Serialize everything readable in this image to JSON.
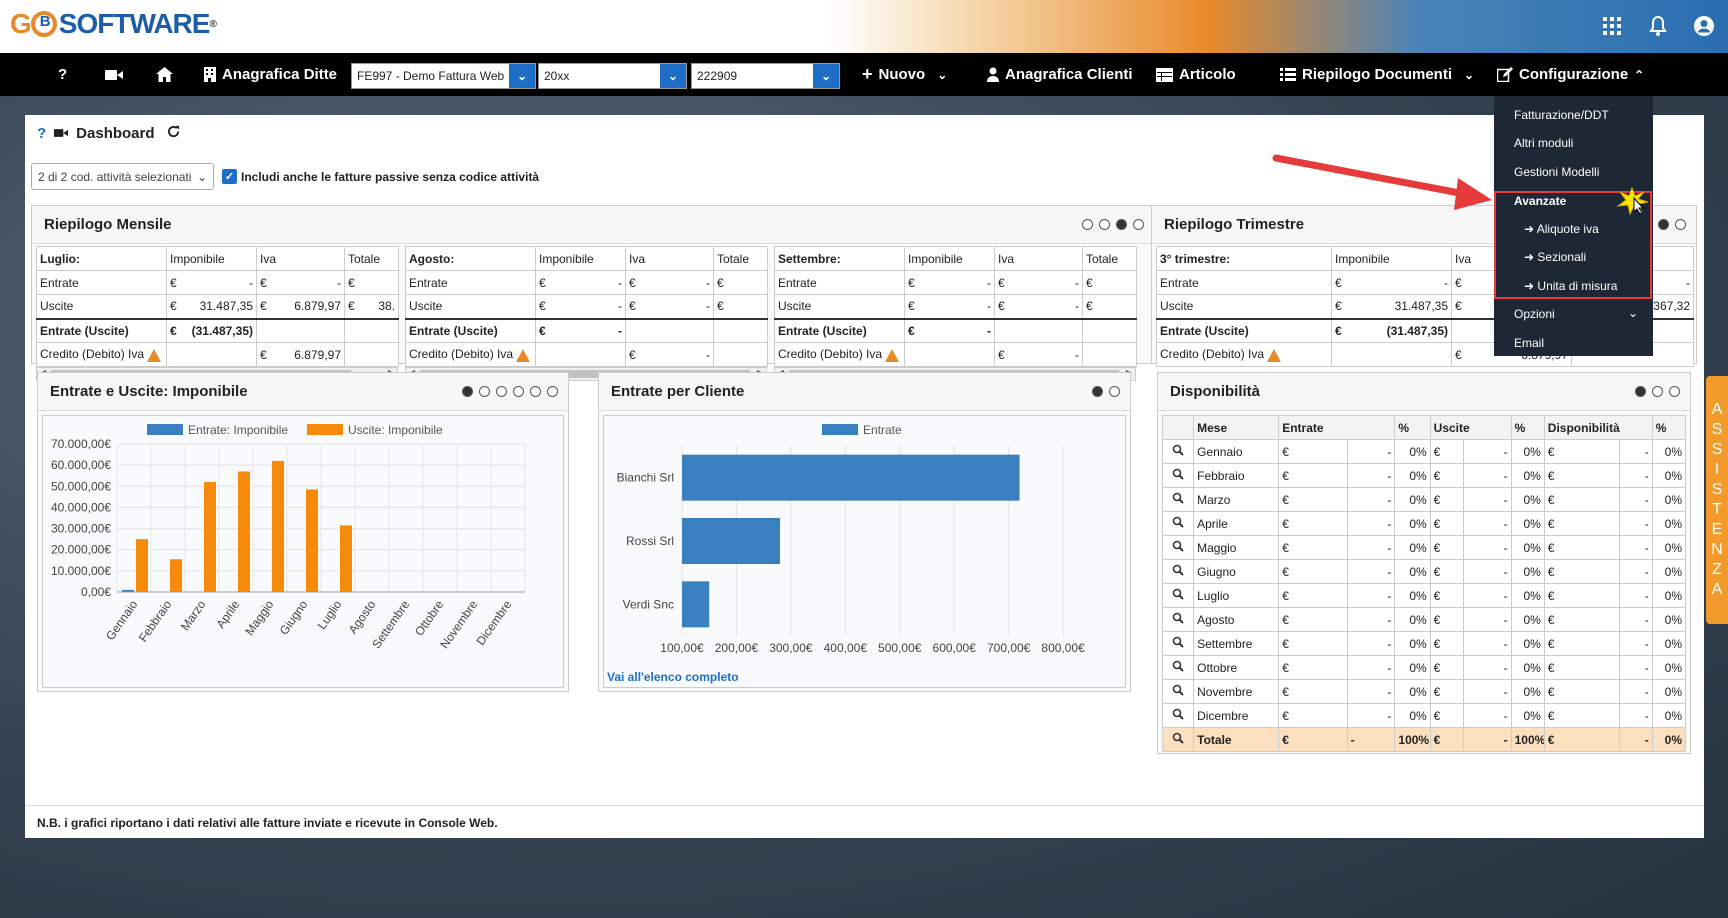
{
  "header": {
    "logo_text": "SOFTWARE",
    "logo_mark": "B",
    "trademark": "®"
  },
  "navbar": {
    "help": "?",
    "anagrafica_ditte": "Anagrafica Ditte",
    "ditta_select": "FE997 - Demo Fattura Web",
    "year_select": "20xx",
    "code_select": "222909",
    "nuovo": "Nuovo",
    "anagrafica_clienti": "Anagrafica Clienti",
    "articolo": "Articolo",
    "riepilogo_documenti": "Riepilogo Documenti",
    "configurazione": "Configurazione"
  },
  "dropdown": {
    "fatturazione": "Fatturazione/DDT",
    "altri_moduli": "Altri moduli",
    "gestioni_modelli": "Gestioni Modelli",
    "avanzate": "Avanzate",
    "aliquote_iva": "Aliquote iva",
    "sezionali": "Sezionali",
    "unita_misura": "Unita di misura",
    "opzioni": "Opzioni",
    "email": "Email"
  },
  "dashboard": {
    "title": "Dashboard",
    "filter_select": "2 di 2 cod. attività selezionati",
    "include_checkbox": "Includi anche le fatture passive senza codice attività",
    "note": "N.B. i grafici riportano i dati relativi alle fatture inviate e ricevute in Console Web."
  },
  "riepilogo_mensile": {
    "title": "Riepilogo Mensile",
    "tables": [
      {
        "month": "Luglio:",
        "imponibile": "Imponibile",
        "iva": "Iva",
        "totale": "Totale",
        "entrate": "Entrate",
        "uscite": "Uscite",
        "saldo": "Entrate (Uscite)",
        "credito": "Credito (Debito) Iva",
        "e_imp": "-",
        "e_iva": "-",
        "u_imp": "31.487,35",
        "u_iva": "6.879,97",
        "u_tot": "38.",
        "s_imp": "(31.487,35)",
        "c_iva": "6.879,97"
      },
      {
        "month": "Agosto:",
        "imponibile": "Imponibile",
        "iva": "Iva",
        "totale": "Totale",
        "entrate": "Entrate",
        "uscite": "Uscite",
        "saldo": "Entrate (Uscite)",
        "credito": "Credito (Debito) Iva",
        "e_imp": "-",
        "e_iva": "-",
        "u_imp": "-",
        "u_iva": "-",
        "u_tot": "",
        "s_imp": "-",
        "c_iva": "-"
      },
      {
        "month": "Settembre:",
        "imponibile": "Imponibile",
        "iva": "Iva",
        "totale": "Totale",
        "entrate": "Entrate",
        "uscite": "Uscite",
        "saldo": "Entrate (Uscite)",
        "credito": "Credito (Debito) Iva",
        "e_imp": "-",
        "e_iva": "-",
        "u_imp": "-",
        "u_iva": "-",
        "u_tot": "",
        "s_imp": "-",
        "c_iva": "-"
      }
    ],
    "currency": "€"
  },
  "riepilogo_trimestre": {
    "title": "Riepilogo Trimestre",
    "quarter": "3° trimestre:",
    "imponibile": "Imponibile",
    "iva": "Iva",
    "entrate": "Entrate",
    "uscite": "Uscite",
    "saldo": "Entrate (Uscite)",
    "credito": "Credito (Debito) Iva",
    "u_imp": "31.487,35",
    "s_imp": "(31.487,35)",
    "u_tot_partial": "367,32",
    "c_iva_partial": "6.879,97",
    "e_imp": "-",
    "e_tot": "-"
  },
  "chart_data": [
    {
      "type": "bar",
      "title": "Entrate e Uscite: Imponibile",
      "categories": [
        "Gennaio",
        "Febbraio",
        "Marzo",
        "Aprile",
        "Maggio",
        "Giugno",
        "Luglio",
        "Agosto",
        "Settembre",
        "Ottobre",
        "Novembre",
        "Dicembre"
      ],
      "series": [
        {
          "name": "Entrate: Imponibile",
          "color": "#3a7fbf",
          "values": [
            1000,
            0,
            0,
            0,
            0,
            0,
            0,
            0,
            0,
            0,
            0,
            0
          ]
        },
        {
          "name": "Uscite: Imponibile",
          "color": "#f58a0b",
          "values": [
            25000,
            15500,
            52000,
            57000,
            62000,
            48500,
            31500,
            0,
            0,
            0,
            0,
            0
          ]
        }
      ],
      "ylim": [
        0,
        70000
      ],
      "yticks": [
        "70.000,00€",
        "60.000,00€",
        "50.000,00€",
        "40.000,00€",
        "30.000,00€",
        "20.000,00€",
        "10.000,00€",
        "0,00€"
      ],
      "legend": "top"
    },
    {
      "type": "bar",
      "orientation": "horizontal",
      "title": "Entrate per Cliente",
      "categories": [
        "Bianchi Srl",
        "Rossi Srl",
        "Verdi Snc"
      ],
      "series": [
        {
          "name": "Entrate",
          "color": "#3a7fbf",
          "values": [
            720,
            280,
            150
          ]
        }
      ],
      "xlim": [
        100,
        820
      ],
      "xticks": [
        "100,00€",
        "200,00€",
        "300,00€",
        "400,00€",
        "500,00€",
        "600,00€",
        "700,00€",
        "800,00€"
      ],
      "legend": "top",
      "link": "Vai all'elenco completo"
    },
    {
      "type": "table",
      "title": "Disponibilità",
      "columns": [
        "Mese",
        "Entrate",
        "%",
        "Uscite",
        "%",
        "Disponibilità",
        "%"
      ],
      "rows": [
        [
          "Gennaio",
          "€",
          "-",
          "0%",
          "€",
          "-",
          "0%",
          "€",
          "-",
          "0%"
        ],
        [
          "Febbraio",
          "€",
          "-",
          "0%",
          "€",
          "-",
          "0%",
          "€",
          "-",
          "0%"
        ],
        [
          "Marzo",
          "€",
          "-",
          "0%",
          "€",
          "-",
          "0%",
          "€",
          "-",
          "0%"
        ],
        [
          "Aprile",
          "€",
          "-",
          "0%",
          "€",
          "-",
          "0%",
          "€",
          "-",
          "0%"
        ],
        [
          "Maggio",
          "€",
          "-",
          "0%",
          "€",
          "-",
          "0%",
          "€",
          "-",
          "0%"
        ],
        [
          "Giugno",
          "€",
          "-",
          "0%",
          "€",
          "-",
          "0%",
          "€",
          "-",
          "0%"
        ],
        [
          "Luglio",
          "€",
          "-",
          "0%",
          "€",
          "-",
          "0%",
          "€",
          "-",
          "0%"
        ],
        [
          "Agosto",
          "€",
          "-",
          "0%",
          "€",
          "-",
          "0%",
          "€",
          "-",
          "0%"
        ],
        [
          "Settembre",
          "€",
          "-",
          "0%",
          "€",
          "-",
          "0%",
          "€",
          "-",
          "0%"
        ],
        [
          "Ottobre",
          "€",
          "-",
          "0%",
          "€",
          "-",
          "0%",
          "€",
          "-",
          "0%"
        ],
        [
          "Novembre",
          "€",
          "-",
          "0%",
          "€",
          "-",
          "0%",
          "€",
          "-",
          "0%"
        ],
        [
          "Dicembre",
          "€",
          "-",
          "0%",
          "€",
          "-",
          "0%",
          "€",
          "-",
          "0%"
        ]
      ],
      "total": [
        "Totale",
        "€",
        "-",
        "100%",
        "€",
        "-",
        "100%",
        "€",
        "-",
        "0%"
      ]
    }
  ],
  "assistenza": "ASSISTENZA"
}
